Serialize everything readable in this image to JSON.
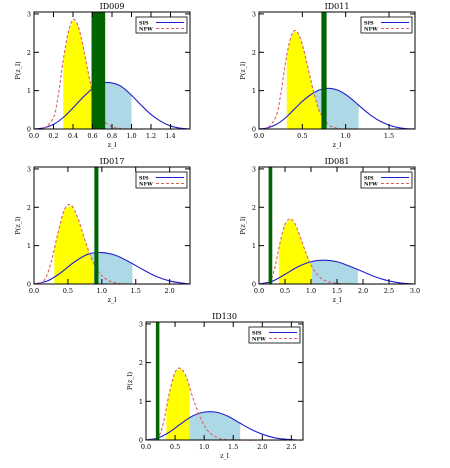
{
  "chart_data": [
    {
      "type": "line",
      "title": "ID009",
      "xlabel": "z_l",
      "ylabel": "P(z_l)",
      "xlim": [
        0.0,
        1.6
      ],
      "ylim": [
        0,
        3.05
      ],
      "xticks": [
        "0.0",
        "0.2",
        "0.4",
        "0.6",
        "0.8",
        "1.0",
        "1.2",
        "1.4"
      ],
      "yticks": [
        "0",
        "1",
        "2",
        "3"
      ],
      "legend": {
        "placement": "top-right",
        "entries": [
          "SIS",
          "NFW"
        ]
      },
      "vline": {
        "x": 0.66,
        "width": 0.14,
        "color": "#006400"
      },
      "series": [
        {
          "name": "SIS",
          "color": "#1f1fcf",
          "style": "solid",
          "x": [
            0.0,
            0.1,
            0.2,
            0.3,
            0.4,
            0.5,
            0.6,
            0.7,
            0.8,
            0.9,
            1.0,
            1.1,
            1.2,
            1.3,
            1.4,
            1.5,
            1.6
          ],
          "y": [
            0.0,
            0.03,
            0.12,
            0.3,
            0.55,
            0.82,
            1.05,
            1.2,
            1.2,
            1.1,
            0.88,
            0.62,
            0.38,
            0.2,
            0.08,
            0.02,
            0.0
          ],
          "shaded_range": [
            0.58,
            1.0
          ],
          "shade_color": "#add8e6"
        },
        {
          "name": "NFW",
          "color": "#e06060",
          "style": "dashed",
          "x": [
            0.0,
            0.1,
            0.2,
            0.25,
            0.3,
            0.35,
            0.4,
            0.45,
            0.5,
            0.55,
            0.6,
            0.65,
            0.7,
            0.8,
            0.9,
            1.0,
            1.2,
            1.6
          ],
          "y": [
            0.0,
            0.02,
            0.3,
            0.9,
            1.8,
            2.5,
            2.85,
            2.7,
            2.2,
            1.55,
            0.95,
            0.5,
            0.25,
            0.06,
            0.01,
            0.0,
            0.0,
            0.0
          ],
          "shaded_range": [
            0.3,
            0.6
          ],
          "shade_color": "#ffff00"
        }
      ]
    },
    {
      "type": "line",
      "title": "ID011",
      "xlabel": "z_l",
      "ylabel": "P(z_l)",
      "xlim": [
        0.0,
        1.8
      ],
      "ylim": [
        0,
        3.05
      ],
      "xticks": [
        "0.0",
        "0.5",
        "1.0",
        "1.5"
      ],
      "yticks": [
        "0",
        "1",
        "2",
        "3"
      ],
      "legend": {
        "placement": "top-right",
        "entries": [
          "SIS",
          "NFW"
        ]
      },
      "vline": {
        "x": 0.75,
        "width": 0.06,
        "color": "#006400"
      },
      "series": [
        {
          "name": "SIS",
          "color": "#1f1fcf",
          "style": "solid",
          "x": [
            0.0,
            0.1,
            0.2,
            0.3,
            0.4,
            0.5,
            0.6,
            0.7,
            0.8,
            0.9,
            1.0,
            1.1,
            1.2,
            1.3,
            1.4,
            1.5,
            1.6,
            1.7,
            1.8
          ],
          "y": [
            0.0,
            0.03,
            0.12,
            0.28,
            0.5,
            0.72,
            0.9,
            1.02,
            1.06,
            1.02,
            0.9,
            0.72,
            0.52,
            0.34,
            0.2,
            0.1,
            0.04,
            0.01,
            0.0
          ],
          "shaded_range": [
            0.55,
            1.15
          ],
          "shade_color": "#add8e6"
        },
        {
          "name": "NFW",
          "color": "#e06060",
          "style": "dashed",
          "x": [
            0.0,
            0.1,
            0.2,
            0.25,
            0.3,
            0.35,
            0.4,
            0.45,
            0.5,
            0.55,
            0.6,
            0.65,
            0.7,
            0.8,
            0.9,
            1.0,
            1.2,
            1.8
          ],
          "y": [
            0.0,
            0.03,
            0.35,
            0.9,
            1.65,
            2.25,
            2.55,
            2.5,
            2.2,
            1.75,
            1.25,
            0.8,
            0.45,
            0.12,
            0.02,
            0.0,
            0.0,
            0.0
          ],
          "shaded_range": [
            0.32,
            0.72
          ],
          "shade_color": "#ffff00"
        }
      ]
    },
    {
      "type": "line",
      "title": "ID017",
      "xlabel": "z_l",
      "ylabel": "P(z_l)",
      "xlim": [
        0.0,
        2.3
      ],
      "ylim": [
        0,
        3.05
      ],
      "xticks": [
        "0.0",
        "0.5",
        "1.0",
        "1.5",
        "2.0"
      ],
      "yticks": [
        "0",
        "1",
        "2",
        "3"
      ],
      "legend": {
        "placement": "top-right",
        "entries": [
          "SIS",
          "NFW"
        ]
      },
      "vline": {
        "x": 0.92,
        "width": 0.06,
        "color": "#006400"
      },
      "series": [
        {
          "name": "SIS",
          "color": "#1f1fcf",
          "style": "solid",
          "x": [
            0.0,
            0.2,
            0.4,
            0.6,
            0.8,
            1.0,
            1.2,
            1.4,
            1.6,
            1.8,
            2.0,
            2.2,
            2.3
          ],
          "y": [
            0.0,
            0.08,
            0.3,
            0.58,
            0.78,
            0.82,
            0.75,
            0.58,
            0.38,
            0.2,
            0.08,
            0.02,
            0.0
          ],
          "shaded_range": [
            0.55,
            1.45
          ],
          "shade_color": "#add8e6"
        },
        {
          "name": "NFW",
          "color": "#e06060",
          "style": "dashed",
          "x": [
            0.0,
            0.15,
            0.25,
            0.35,
            0.45,
            0.55,
            0.65,
            0.75,
            0.85,
            0.95,
            1.05,
            1.2,
            1.4,
            2.3
          ],
          "y": [
            0.0,
            0.1,
            0.55,
            1.3,
            1.95,
            2.05,
            1.7,
            1.15,
            0.65,
            0.32,
            0.14,
            0.03,
            0.0,
            0.0
          ],
          "shaded_range": [
            0.3,
            0.88
          ],
          "shade_color": "#ffff00"
        }
      ]
    },
    {
      "type": "line",
      "title": "ID081",
      "xlabel": "z_l",
      "ylabel": "P(z_l)",
      "xlim": [
        0.0,
        3.0
      ],
      "ylim": [
        0,
        3.05
      ],
      "xticks": [
        "0.0",
        "0.5",
        "1.0",
        "1.5",
        "2.0",
        "2.5",
        "3.0"
      ],
      "yticks": [
        "0",
        "1",
        "2",
        "3"
      ],
      "legend": {
        "placement": "top-right",
        "entries": [
          "SIS",
          "NFW"
        ]
      },
      "vline": {
        "x": 0.22,
        "width": 0.07,
        "color": "#006400"
      },
      "series": [
        {
          "name": "SIS",
          "color": "#1f1fcf",
          "style": "solid",
          "x": [
            0.0,
            0.25,
            0.5,
            0.75,
            1.0,
            1.25,
            1.5,
            1.75,
            2.0,
            2.25,
            2.5,
            2.75,
            3.0
          ],
          "y": [
            0.0,
            0.07,
            0.25,
            0.45,
            0.58,
            0.62,
            0.58,
            0.46,
            0.32,
            0.18,
            0.08,
            0.02,
            0.0
          ],
          "shaded_range": [
            0.72,
            1.9
          ],
          "shade_color": "#add8e6"
        },
        {
          "name": "NFW",
          "color": "#e06060",
          "style": "dashed",
          "x": [
            0.0,
            0.2,
            0.3,
            0.4,
            0.5,
            0.6,
            0.7,
            0.8,
            0.9,
            1.0,
            1.1,
            1.25,
            1.5,
            1.8,
            3.0
          ],
          "y": [
            0.0,
            0.05,
            0.4,
            1.05,
            1.55,
            1.7,
            1.55,
            1.2,
            0.82,
            0.5,
            0.28,
            0.1,
            0.02,
            0.0,
            0.0
          ],
          "shaded_range": [
            0.38,
            1.02
          ],
          "shade_color": "#ffff00"
        }
      ]
    },
    {
      "type": "line",
      "title": "ID130",
      "xlabel": "z_l",
      "ylabel": "P(z_l)",
      "xlim": [
        0.0,
        2.7
      ],
      "ylim": [
        0,
        3.05
      ],
      "xticks": [
        "0.0",
        "0.5",
        "1.0",
        "1.5",
        "2.0",
        "2.5"
      ],
      "yticks": [
        "0",
        "1",
        "2",
        "3"
      ],
      "legend": {
        "placement": "top-right",
        "entries": [
          "SIS",
          "NFW"
        ]
      },
      "vline": {
        "x": 0.2,
        "width": 0.06,
        "color": "#006400"
      },
      "series": [
        {
          "name": "SIS",
          "color": "#1f1fcf",
          "style": "solid",
          "x": [
            0.0,
            0.2,
            0.4,
            0.6,
            0.8,
            1.0,
            1.2,
            1.4,
            1.6,
            1.8,
            2.0,
            2.2,
            2.4,
            2.6,
            2.7
          ],
          "y": [
            0.0,
            0.05,
            0.2,
            0.42,
            0.62,
            0.72,
            0.72,
            0.62,
            0.45,
            0.28,
            0.15,
            0.06,
            0.02,
            0.0,
            0.0
          ],
          "shaded_range": [
            0.62,
            1.62
          ],
          "shade_color": "#add8e6"
        },
        {
          "name": "NFW",
          "color": "#e06060",
          "style": "dashed",
          "x": [
            0.0,
            0.2,
            0.3,
            0.4,
            0.5,
            0.6,
            0.7,
            0.8,
            0.9,
            1.0,
            1.1,
            1.25,
            1.5,
            2.7
          ],
          "y": [
            0.0,
            0.06,
            0.45,
            1.2,
            1.75,
            1.85,
            1.6,
            1.12,
            0.7,
            0.38,
            0.18,
            0.05,
            0.0,
            0.0
          ],
          "shaded_range": [
            0.35,
            0.75
          ],
          "shade_color": "#ffff00"
        }
      ]
    }
  ]
}
